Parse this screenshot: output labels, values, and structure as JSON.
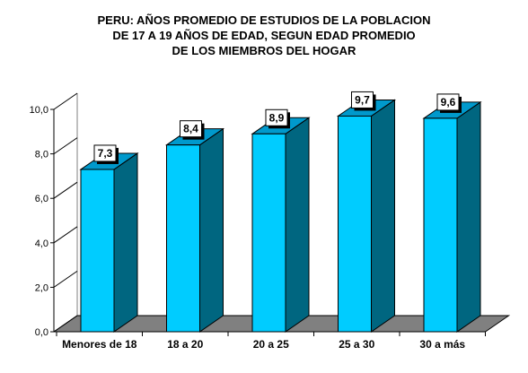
{
  "chart_data": {
    "type": "bar",
    "title": "PERU: AÑOS PROMEDIO DE ESTUDIOS DE LA POBLACION\nDE 17 A 19 AÑOS DE EDAD, SEGUN EDAD PROMEDIO\nDE LOS MIEMBROS DEL HOGAR",
    "xlabel": "",
    "ylabel": "",
    "categories": [
      "Menores de 18",
      "18 a 20",
      "20 a 25",
      "25 a 30",
      "30 a más"
    ],
    "values": [
      7.3,
      8.4,
      8.9,
      9.7,
      9.6
    ],
    "data_labels": [
      "7,3",
      "8,4",
      "8,9",
      "9,7",
      "9,6"
    ],
    "ylim": [
      0,
      10
    ],
    "yticks": [
      0,
      2,
      4,
      6,
      8,
      10
    ],
    "ytick_labels": [
      "0,0",
      "2,0",
      "4,0",
      "6,0",
      "8,0",
      "10,0"
    ],
    "grid": false,
    "legend": "none",
    "colors": {
      "bar_front": "#00ccff",
      "bar_side": "#006680",
      "bar_top": "#0099cc",
      "floor": "#808080",
      "label_box": "#ffffff",
      "label_shadow": "#000000"
    }
  }
}
